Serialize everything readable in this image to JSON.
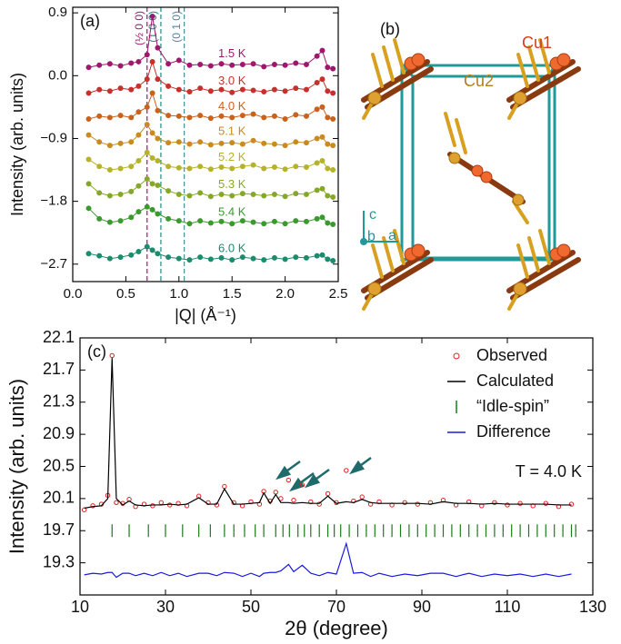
{
  "chart_data": [
    {
      "type": "line",
      "label": "(a)",
      "xlabel": "|Q| (Å⁻¹)",
      "ylabel": "Intensity (arb. units)",
      "x": [
        0.15,
        0.25,
        0.35,
        0.45,
        0.55,
        0.62,
        0.7,
        0.75,
        0.8,
        0.9,
        1.0,
        1.1,
        1.2,
        1.3,
        1.4,
        1.5,
        1.6,
        1.7,
        1.8,
        1.9,
        2.0,
        2.1,
        2.2,
        2.3,
        2.35,
        2.4,
        2.45
      ],
      "xlim": [
        0,
        2.5
      ],
      "ylim": [
        -2.95,
        0.98
      ],
      "xticks": [
        {
          "value": 0,
          "label": "0.0"
        },
        0.5,
        {
          "value": 1,
          "label": "1.0"
        },
        1.5,
        {
          "value": 2,
          "label": "2.0"
        },
        2.5
      ],
      "yticks": [
        0.9,
        {
          "value": 0,
          "label": "0.0"
        },
        {
          "value": -0.9,
          "label": "−0.9"
        },
        {
          "value": -1.8,
          "label": "−1.8"
        },
        {
          "value": -2.7,
          "label": "−2.7"
        }
      ],
      "legend": "inline",
      "reference_lines": [
        {
          "x": 0.7,
          "label": "(½ 0 0)",
          "color": "#9b1b6e"
        },
        {
          "x": 0.83,
          "label": "(1 0 0)",
          "color": "#1b8c7e"
        },
        {
          "x": 1.05,
          "label": "(0 1 0)",
          "color": "#4a8aa0"
        }
      ],
      "series": [
        {
          "name": "1.5 K",
          "color": "#a0186e",
          "values": [
            0.12,
            0.15,
            0.17,
            0.14,
            0.18,
            0.2,
            0.3,
            0.85,
            0.4,
            0.17,
            0.22,
            0.15,
            0.16,
            0.14,
            0.17,
            0.15,
            0.16,
            0.17,
            0.13,
            0.16,
            0.15,
            0.18,
            0.16,
            0.28,
            0.36,
            0.12,
            0.1
          ]
        },
        {
          "name": "3.0 K",
          "color": "#c8302c",
          "values": [
            -0.25,
            -0.2,
            -0.22,
            -0.18,
            -0.2,
            -0.15,
            -0.05,
            0.2,
            -0.05,
            -0.15,
            -0.2,
            -0.23,
            -0.18,
            -0.22,
            -0.2,
            -0.24,
            -0.2,
            -0.21,
            -0.23,
            -0.2,
            -0.22,
            -0.18,
            -0.2,
            -0.1,
            -0.05,
            -0.22,
            -0.25
          ]
        },
        {
          "name": "4.0 K",
          "color": "#c8621c",
          "values": [
            -0.62,
            -0.58,
            -0.6,
            -0.57,
            -0.6,
            -0.52,
            -0.45,
            -0.25,
            -0.5,
            -0.57,
            -0.58,
            -0.6,
            -0.57,
            -0.61,
            -0.58,
            -0.6,
            -0.57,
            -0.55,
            -0.6,
            -0.58,
            -0.62,
            -0.56,
            -0.58,
            -0.48,
            -0.45,
            -0.6,
            -0.62
          ]
        },
        {
          "name": "5.1 K",
          "color": "#c98b1e",
          "values": [
            -0.85,
            -0.95,
            -1.0,
            -0.97,
            -0.95,
            -0.85,
            -0.7,
            -0.82,
            -0.9,
            -0.96,
            -0.95,
            -0.98,
            -0.95,
            -0.99,
            -0.97,
            -0.96,
            -0.98,
            -0.93,
            -0.97,
            -0.98,
            -1.0,
            -0.95,
            -0.96,
            -0.9,
            -0.88,
            -0.98,
            -1.0
          ]
        },
        {
          "name": "5.2 K",
          "color": "#b5b32a",
          "values": [
            -1.2,
            -1.3,
            -1.35,
            -1.33,
            -1.3,
            -1.22,
            -1.1,
            -1.18,
            -1.22,
            -1.3,
            -1.32,
            -1.33,
            -1.3,
            -1.34,
            -1.31,
            -1.33,
            -1.3,
            -1.28,
            -1.33,
            -1.31,
            -1.34,
            -1.3,
            -1.31,
            -1.25,
            -1.22,
            -1.33,
            -1.35
          ]
        },
        {
          "name": "5.3 K",
          "color": "#86a82a",
          "values": [
            -1.55,
            -1.68,
            -1.72,
            -1.7,
            -1.66,
            -1.58,
            -1.48,
            -1.55,
            -1.57,
            -1.65,
            -1.7,
            -1.72,
            -1.68,
            -1.73,
            -1.7,
            -1.72,
            -1.69,
            -1.7,
            -1.72,
            -1.7,
            -1.73,
            -1.69,
            -1.7,
            -1.64,
            -1.62,
            -1.72,
            -1.74
          ]
        },
        {
          "name": "5.4 K",
          "color": "#3a9a2e",
          "values": [
            -1.9,
            -2.05,
            -2.1,
            -2.08,
            -2.03,
            -1.95,
            -1.88,
            -1.92,
            -1.98,
            -2.05,
            -2.08,
            -2.12,
            -2.08,
            -2.11,
            -2.09,
            -2.12,
            -2.08,
            -2.1,
            -2.12,
            -2.09,
            -2.12,
            -2.08,
            -2.09,
            -2.05,
            -2.03,
            -2.11,
            -2.13
          ]
        },
        {
          "name": "6.0 K",
          "color": "#1b8c6e",
          "values": [
            -2.55,
            -2.58,
            -2.62,
            -2.6,
            -2.57,
            -2.52,
            -2.45,
            -2.5,
            -2.55,
            -2.6,
            -2.62,
            -2.64,
            -2.6,
            -2.63,
            -2.61,
            -2.64,
            -2.6,
            -2.62,
            -2.64,
            -2.61,
            -2.63,
            -2.6,
            -2.61,
            -2.58,
            -2.57,
            -2.63,
            -2.65
          ]
        }
      ]
    },
    {
      "type": "line",
      "label": "(c)",
      "xlabel": "2θ (degree)",
      "ylabel": "Intensity (arb. units)",
      "annotation": "T = 4.0 K",
      "x": [
        11,
        13,
        15,
        16.5,
        17.5,
        18.5,
        20,
        21.5,
        23,
        25,
        27,
        29,
        31,
        33,
        35,
        37.8,
        40,
        42,
        43.8,
        46,
        48,
        50,
        52,
        53,
        54.5,
        55.8,
        57,
        58.8,
        60,
        62,
        64,
        66,
        68,
        70,
        72.3,
        74,
        76,
        78,
        80,
        83,
        86,
        89,
        92,
        95,
        98,
        101,
        104,
        107,
        110,
        113,
        116,
        119,
        122,
        125
      ],
      "xlim": [
        10,
        130
      ],
      "ylim": [
        18.9,
        22.1
      ],
      "xticks": [
        10,
        30,
        50,
        70,
        90,
        110,
        130
      ],
      "yticks": [
        19.3,
        19.7,
        20.1,
        20.5,
        20.9,
        21.3,
        21.7,
        22.1
      ],
      "legend": "upper right",
      "series": [
        {
          "name": "Observed",
          "color": "#e02020",
          "style": "points",
          "values": [
            19.96,
            20.01,
            20.03,
            20.14,
            21.88,
            20.05,
            20.04,
            20.09,
            20.0,
            20.03,
            20.01,
            20.05,
            20.02,
            20.04,
            20.01,
            20.13,
            20.05,
            20.02,
            20.25,
            20.05,
            20.01,
            20.06,
            20.03,
            20.19,
            20.07,
            20.18,
            20.1,
            20.33,
            20.08,
            20.27,
            20.06,
            20.03,
            20.16,
            20.05,
            20.45,
            20.07,
            20.12,
            20.03,
            20.06,
            20.02,
            20.05,
            20.03,
            20.05,
            20.08,
            20.02,
            20.06,
            20.01,
            20.05,
            20.02,
            20.04,
            20.01,
            20.04,
            20.0,
            20.03
          ]
        },
        {
          "name": "Calculated",
          "color": "#000000",
          "style": "line",
          "values": [
            19.98,
            20.0,
            20.01,
            20.1,
            21.85,
            20.1,
            20.02,
            20.07,
            20.02,
            20.01,
            20.02,
            20.02,
            20.03,
            20.02,
            20.03,
            20.11,
            20.03,
            20.03,
            20.22,
            20.03,
            20.03,
            20.04,
            20.05,
            20.17,
            20.04,
            20.15,
            20.05,
            20.05,
            20.04,
            20.05,
            20.04,
            20.04,
            20.13,
            20.04,
            20.06,
            20.05,
            20.09,
            20.05,
            20.04,
            20.04,
            20.04,
            20.04,
            20.03,
            20.06,
            20.04,
            20.04,
            20.03,
            20.04,
            20.03,
            20.03,
            20.03,
            20.03,
            20.02,
            20.02
          ]
        },
        {
          "name": "“Idle-spin”",
          "color": "#1a7a1a",
          "style": "ticks",
          "y": 19.7,
          "x": [
            17.5,
            21.5,
            26,
            30,
            34,
            37.8,
            40.5,
            43.8,
            46,
            48.5,
            51,
            53,
            55.8,
            57.5,
            59,
            61,
            62.5,
            64,
            66,
            68,
            69.5,
            71,
            73,
            75,
            77,
            79,
            81,
            83,
            85,
            87,
            89,
            91,
            93,
            95,
            97,
            99,
            101,
            103,
            105,
            107,
            109,
            111,
            113,
            115,
            117,
            119,
            121,
            123,
            125,
            126
          ]
        },
        {
          "name": "Difference",
          "color": "#1a1ae0",
          "style": "line",
          "values": [
            19.15,
            19.17,
            19.16,
            19.18,
            19.18,
            19.12,
            19.17,
            19.17,
            19.14,
            19.17,
            19.14,
            19.18,
            19.14,
            19.17,
            19.13,
            19.17,
            19.17,
            19.14,
            19.18,
            19.17,
            19.13,
            19.17,
            19.13,
            19.17,
            19.18,
            19.18,
            19.2,
            19.28,
            19.19,
            19.27,
            19.17,
            19.14,
            19.18,
            19.16,
            19.54,
            19.17,
            19.18,
            19.13,
            19.17,
            19.13,
            19.16,
            19.14,
            19.17,
            19.17,
            19.13,
            19.17,
            19.13,
            19.16,
            19.14,
            19.16,
            19.13,
            19.16,
            19.13,
            19.16
          ]
        }
      ]
    }
  ],
  "diagram": {
    "label": "(b)",
    "atoms": [
      "Cu1",
      "Cu2"
    ],
    "axes": [
      "c",
      "b",
      "a"
    ]
  }
}
